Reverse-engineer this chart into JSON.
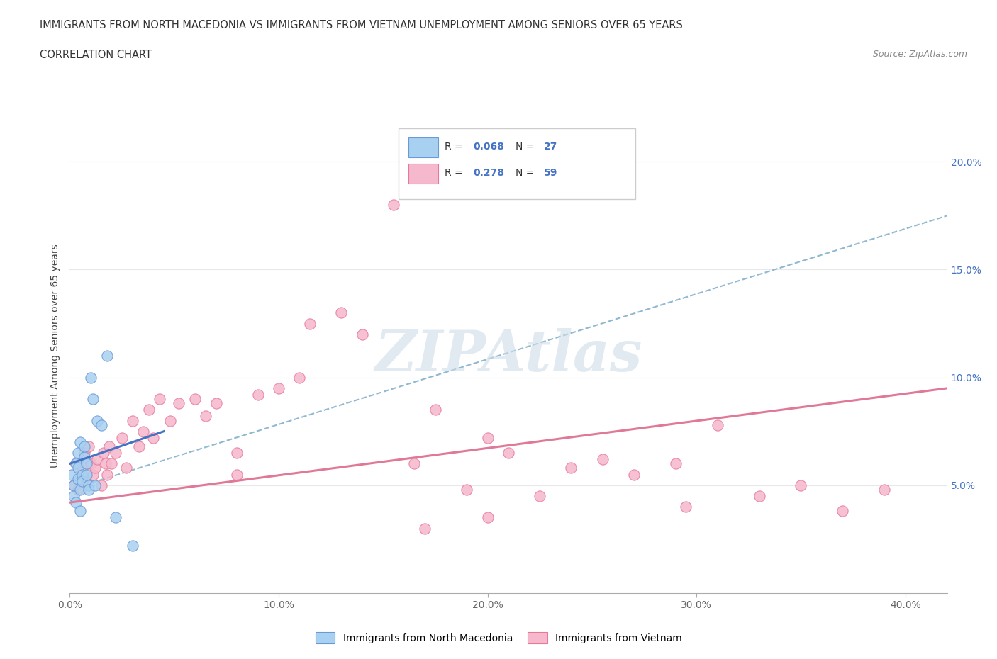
{
  "title_line1": "IMMIGRANTS FROM NORTH MACEDONIA VS IMMIGRANTS FROM VIETNAM UNEMPLOYMENT AMONG SENIORS OVER 65 YEARS",
  "title_line2": "CORRELATION CHART",
  "source": "Source: ZipAtlas.com",
  "ylabel": "Unemployment Among Seniors over 65 years",
  "xlim": [
    0.0,
    0.42
  ],
  "ylim": [
    0.0,
    0.22
  ],
  "xtick_vals": [
    0.0,
    0.1,
    0.2,
    0.3,
    0.4
  ],
  "xtick_labels": [
    "0.0%",
    "10.0%",
    "20.0%",
    "30.0%",
    "40.0%"
  ],
  "ytick_vals": [
    0.05,
    0.1,
    0.15,
    0.2
  ],
  "ytick_labels": [
    "5.0%",
    "10.0%",
    "15.0%",
    "20.0%"
  ],
  "color_mac_fill": "#a8d0f0",
  "color_mac_edge": "#6899d8",
  "color_viet_fill": "#f5b8cc",
  "color_viet_edge": "#e87898",
  "color_mac_line": "#4472c4",
  "color_viet_line": "#e07898",
  "color_dashed": "#90b8d0",
  "color_watermark": "#d0dde8",
  "color_rn_label": "#4472c4",
  "color_grid": "#e8e8e8",
  "north_macedonia_x": [
    0.001,
    0.002,
    0.002,
    0.003,
    0.003,
    0.004,
    0.004,
    0.004,
    0.005,
    0.005,
    0.005,
    0.006,
    0.006,
    0.007,
    0.007,
    0.008,
    0.008,
    0.009,
    0.009,
    0.01,
    0.011,
    0.012,
    0.013,
    0.015,
    0.018,
    0.022,
    0.03
  ],
  "north_macedonia_y": [
    0.055,
    0.05,
    0.045,
    0.06,
    0.042,
    0.058,
    0.065,
    0.053,
    0.048,
    0.07,
    0.038,
    0.055,
    0.052,
    0.063,
    0.068,
    0.055,
    0.06,
    0.05,
    0.048,
    0.1,
    0.09,
    0.05,
    0.08,
    0.078,
    0.11,
    0.035,
    0.022
  ],
  "vietnam_x": [
    0.002,
    0.003,
    0.004,
    0.005,
    0.006,
    0.007,
    0.008,
    0.009,
    0.01,
    0.011,
    0.012,
    0.013,
    0.015,
    0.016,
    0.017,
    0.018,
    0.019,
    0.02,
    0.022,
    0.025,
    0.027,
    0.03,
    0.033,
    0.035,
    0.038,
    0.04,
    0.043,
    0.048,
    0.052,
    0.06,
    0.065,
    0.07,
    0.08,
    0.09,
    0.1,
    0.11,
    0.115,
    0.13,
    0.14,
    0.155,
    0.165,
    0.175,
    0.19,
    0.2,
    0.21,
    0.225,
    0.24,
    0.255,
    0.27,
    0.29,
    0.31,
    0.33,
    0.35,
    0.37,
    0.39,
    0.295,
    0.2,
    0.17,
    0.08
  ],
  "vietnam_y": [
    0.05,
    0.06,
    0.048,
    0.055,
    0.058,
    0.065,
    0.052,
    0.068,
    0.06,
    0.055,
    0.058,
    0.062,
    0.05,
    0.065,
    0.06,
    0.055,
    0.068,
    0.06,
    0.065,
    0.072,
    0.058,
    0.08,
    0.068,
    0.075,
    0.085,
    0.072,
    0.09,
    0.08,
    0.088,
    0.09,
    0.082,
    0.088,
    0.065,
    0.092,
    0.095,
    0.1,
    0.125,
    0.13,
    0.12,
    0.18,
    0.06,
    0.085,
    0.048,
    0.072,
    0.065,
    0.045,
    0.058,
    0.062,
    0.055,
    0.06,
    0.078,
    0.045,
    0.05,
    0.038,
    0.048,
    0.04,
    0.035,
    0.03,
    0.055
  ],
  "mac_line_x": [
    0.0,
    0.045
  ],
  "mac_line_y": [
    0.06,
    0.075
  ],
  "viet_line_x": [
    0.0,
    0.42
  ],
  "viet_line_y": [
    0.042,
    0.095
  ],
  "dash_line_x": [
    0.0,
    0.42
  ],
  "dash_line_y": [
    0.048,
    0.175
  ]
}
